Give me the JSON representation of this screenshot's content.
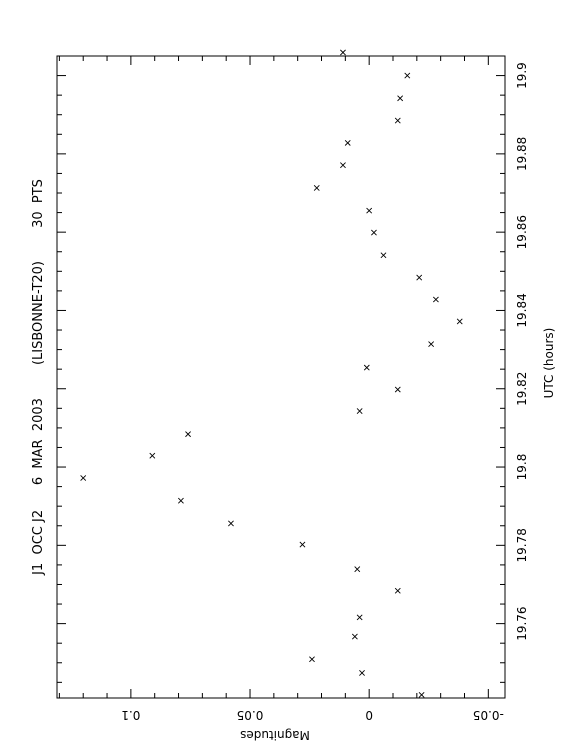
{
  "chart_data": {
    "type": "scatter",
    "orientation": "rotated-90",
    "title": "J1  OCC J2      6  MAR  2003        (LISBONNE-T20)        30  PTS",
    "xlabel": "UTC (hours)",
    "ylabel": "Magnitudes",
    "x_axis": {
      "range": [
        19.741,
        19.905
      ],
      "ticks": [
        19.76,
        19.78,
        19.8,
        19.82,
        19.84,
        19.86,
        19.88,
        19.9
      ],
      "tick_labels": [
        "19.76",
        "19.78",
        "19.8",
        "19.82",
        "19.84",
        "19.86",
        "19.88",
        "19.9"
      ],
      "minor_step": 0.005
    },
    "y_axis": {
      "range": [
        -0.057,
        0.131
      ],
      "inverted": true,
      "ticks": [
        -0.05,
        0,
        0.05,
        0.1
      ],
      "tick_labels": [
        "-0.05",
        "0",
        "0.05",
        "0.1"
      ],
      "minor_step": 0.01
    },
    "grid": false,
    "marker": "x",
    "x": [
      19.7418,
      19.7474,
      19.7509,
      19.7567,
      19.7616,
      19.7684,
      19.7739,
      19.7802,
      19.7856,
      19.7914,
      19.7972,
      19.8029,
      19.8084,
      19.8143,
      19.8198,
      19.8254,
      19.8314,
      19.8372,
      19.8428,
      19.8484,
      19.8541,
      19.8599,
      19.8655,
      19.8713,
      19.8771,
      19.8828,
      19.8885,
      19.8942,
      19.9,
      19.9059
    ],
    "y": [
      -0.022,
      0.003,
      0.024,
      0.006,
      0.004,
      -0.012,
      0.005,
      0.028,
      0.058,
      0.079,
      0.12,
      0.091,
      0.076,
      0.004,
      -0.012,
      0.001,
      -0.026,
      -0.038,
      -0.028,
      -0.021,
      -0.006,
      -0.002,
      0.0,
      0.022,
      0.011,
      0.009,
      -0.012,
      -0.013,
      -0.016,
      0.011
    ]
  }
}
